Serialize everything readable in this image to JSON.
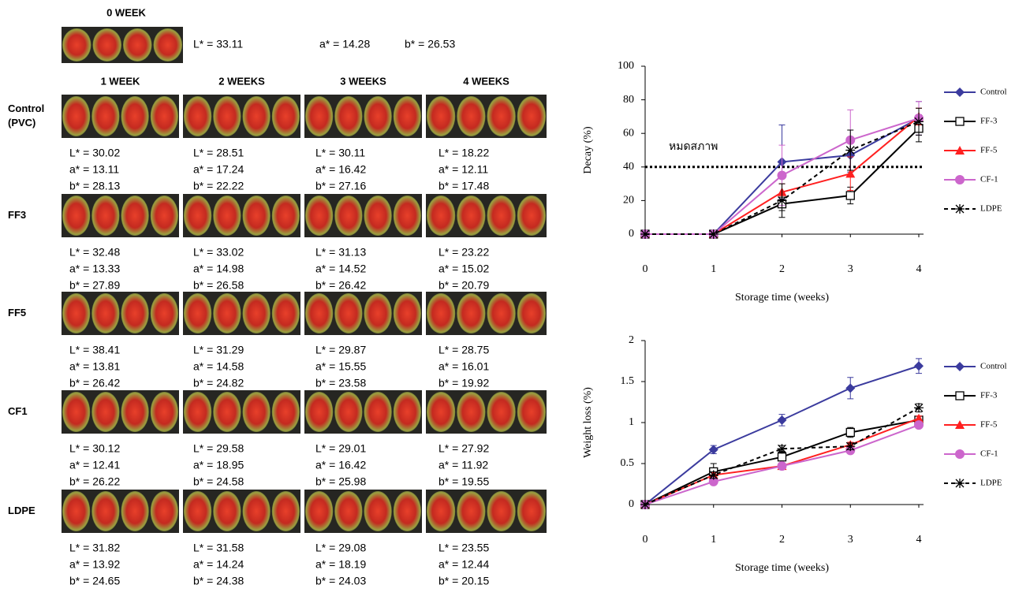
{
  "photo_table": {
    "baseline": {
      "header": "0 WEEK",
      "values": [
        "L* = 33.11",
        "a* = 14.28",
        "b* = 26.53"
      ]
    },
    "columns": [
      "1 WEEK",
      "2 WEEKS",
      "3  WEEKS",
      "4  WEEKS"
    ],
    "rows": [
      {
        "label": [
          "Control",
          "(PVC)"
        ],
        "cells": [
          [
            "L* = 30.02",
            "a* = 13.11",
            "b* = 28.13"
          ],
          [
            "L* = 28.51",
            "a* = 17.24",
            "b* = 22.22"
          ],
          [
            "L* = 30.11",
            "a* = 16.42",
            "b* = 27.16"
          ],
          [
            "L* = 18.22",
            "a* = 12.11",
            "b* = 17.48"
          ]
        ]
      },
      {
        "label": [
          "FF3"
        ],
        "cells": [
          [
            "L* = 32.48",
            "a* = 13.33",
            "b* = 27.89"
          ],
          [
            "L* = 33.02",
            "a* = 14.98",
            "b* = 26.58"
          ],
          [
            "L* = 31.13",
            "a* = 14.52",
            "b* = 26.42"
          ],
          [
            "L* = 23.22",
            "a* = 15.02",
            "b* = 20.79"
          ]
        ]
      },
      {
        "label": [
          "FF5"
        ],
        "cells": [
          [
            "L* = 38.41",
            "a* = 13.81",
            "b* = 26.42"
          ],
          [
            "L* = 31.29",
            "a* = 14.58",
            "b* = 24.82"
          ],
          [
            "L* = 29.87",
            "a* = 15.55",
            "b* = 23.58"
          ],
          [
            "L* = 28.75",
            "a* = 16.01",
            "b* = 19.92"
          ]
        ]
      },
      {
        "label": [
          "CF1"
        ],
        "cells": [
          [
            "L* = 30.12",
            "a* = 12.41",
            "b* = 26.22"
          ],
          [
            "L* = 29.58",
            "a* = 18.95",
            "b* = 24.58"
          ],
          [
            "L* = 29.01",
            "a* = 16.42",
            "b* = 25.98"
          ],
          [
            "L* = 27.92",
            "a* = 11.92",
            "b* = 19.55"
          ]
        ]
      },
      {
        "label": [
          "LDPE"
        ],
        "cells": [
          [
            "L* = 31.82",
            "a* = 13.92",
            "b* = 24.65"
          ],
          [
            "L* = 31.58",
            "a* = 14.24",
            "b* = 24.38"
          ],
          [
            "L* = 29.08",
            "a* = 18.19",
            "b* = 24.03"
          ],
          [
            "L* = 23.55",
            "a* = 12.44",
            "b* = 20.15"
          ]
        ]
      }
    ]
  },
  "chart_data": [
    {
      "type": "line",
      "x_label": "Storage time (weeks)",
      "y_label": "Decay (%)",
      "x": [
        0,
        1,
        2,
        3,
        4
      ],
      "xlim": [
        0,
        4
      ],
      "xticks": [
        0,
        1,
        2,
        3,
        4
      ],
      "ylim": [
        0,
        100
      ],
      "yticks": [
        0,
        20,
        40,
        60,
        80,
        100
      ],
      "threshold": {
        "value": 40,
        "label": "หมดสภาพ"
      },
      "legend": "right",
      "series": [
        {
          "name": "Control",
          "color": "#3b3b9e",
          "marker": "diamond",
          "dashed": false,
          "values": [
            0,
            0,
            43,
            47,
            69
          ],
          "errors": [
            null,
            null,
            22,
            10,
            10
          ]
        },
        {
          "name": "FF-3",
          "color": "#000000",
          "marker": "square",
          "dashed": false,
          "values": [
            0,
            0,
            18,
            23,
            63
          ],
          "errors": [
            null,
            null,
            4,
            5,
            8
          ]
        },
        {
          "name": "FF-5",
          "color": "#ff2020",
          "marker": "triangle",
          "dashed": false,
          "values": [
            0,
            0,
            25,
            36,
            70
          ],
          "errors": [
            null,
            null,
            5,
            10,
            5
          ]
        },
        {
          "name": "CF-1",
          "color": "#cc66cc",
          "marker": "circle",
          "dashed": false,
          "values": [
            0,
            0,
            35,
            56,
            69
          ],
          "errors": [
            null,
            null,
            18,
            18,
            10
          ]
        },
        {
          "name": "LDPE",
          "color": "#000000",
          "marker": "asterisk",
          "dashed": true,
          "values": [
            0,
            0,
            20,
            50,
            67
          ],
          "errors": [
            null,
            null,
            10,
            12,
            8
          ]
        }
      ]
    },
    {
      "type": "line",
      "x_label": "Storage time (weeks)",
      "y_label": "Weight loss (%)",
      "x": [
        0,
        1,
        2,
        3,
        4
      ],
      "xlim": [
        0,
        4
      ],
      "xticks": [
        0,
        1,
        2,
        3,
        4
      ],
      "ylim": [
        0,
        2
      ],
      "yticks": [
        0,
        0.5,
        1,
        1.5,
        2
      ],
      "legend": "right",
      "series": [
        {
          "name": "Control",
          "color": "#3b3b9e",
          "marker": "diamond",
          "dashed": false,
          "values": [
            0,
            0.67,
            1.03,
            1.42,
            1.69
          ],
          "errors": [
            null,
            0.05,
            0.07,
            0.13,
            0.09
          ]
        },
        {
          "name": "FF-3",
          "color": "#000000",
          "marker": "square",
          "dashed": false,
          "values": [
            0,
            0.4,
            0.58,
            0.88,
            1.03
          ],
          "errors": [
            null,
            0.1,
            0.07,
            0.06,
            0.05
          ]
        },
        {
          "name": "FF-5",
          "color": "#ff2020",
          "marker": "triangle",
          "dashed": false,
          "values": [
            0,
            0.36,
            0.47,
            0.73,
            1.05
          ],
          "errors": [
            null,
            0.03,
            0.03,
            0.03,
            0.03
          ]
        },
        {
          "name": "CF-1",
          "color": "#cc66cc",
          "marker": "circle",
          "dashed": false,
          "values": [
            0,
            0.28,
            0.47,
            0.66,
            0.97
          ],
          "errors": [
            null,
            0.03,
            0.03,
            0.03,
            0.03
          ]
        },
        {
          "name": "LDPE",
          "color": "#000000",
          "marker": "asterisk",
          "dashed": true,
          "values": [
            0,
            0.36,
            0.68,
            0.71,
            1.18
          ],
          "errors": [
            null,
            0.04,
            0.04,
            0.04,
            0.05
          ]
        }
      ]
    }
  ]
}
